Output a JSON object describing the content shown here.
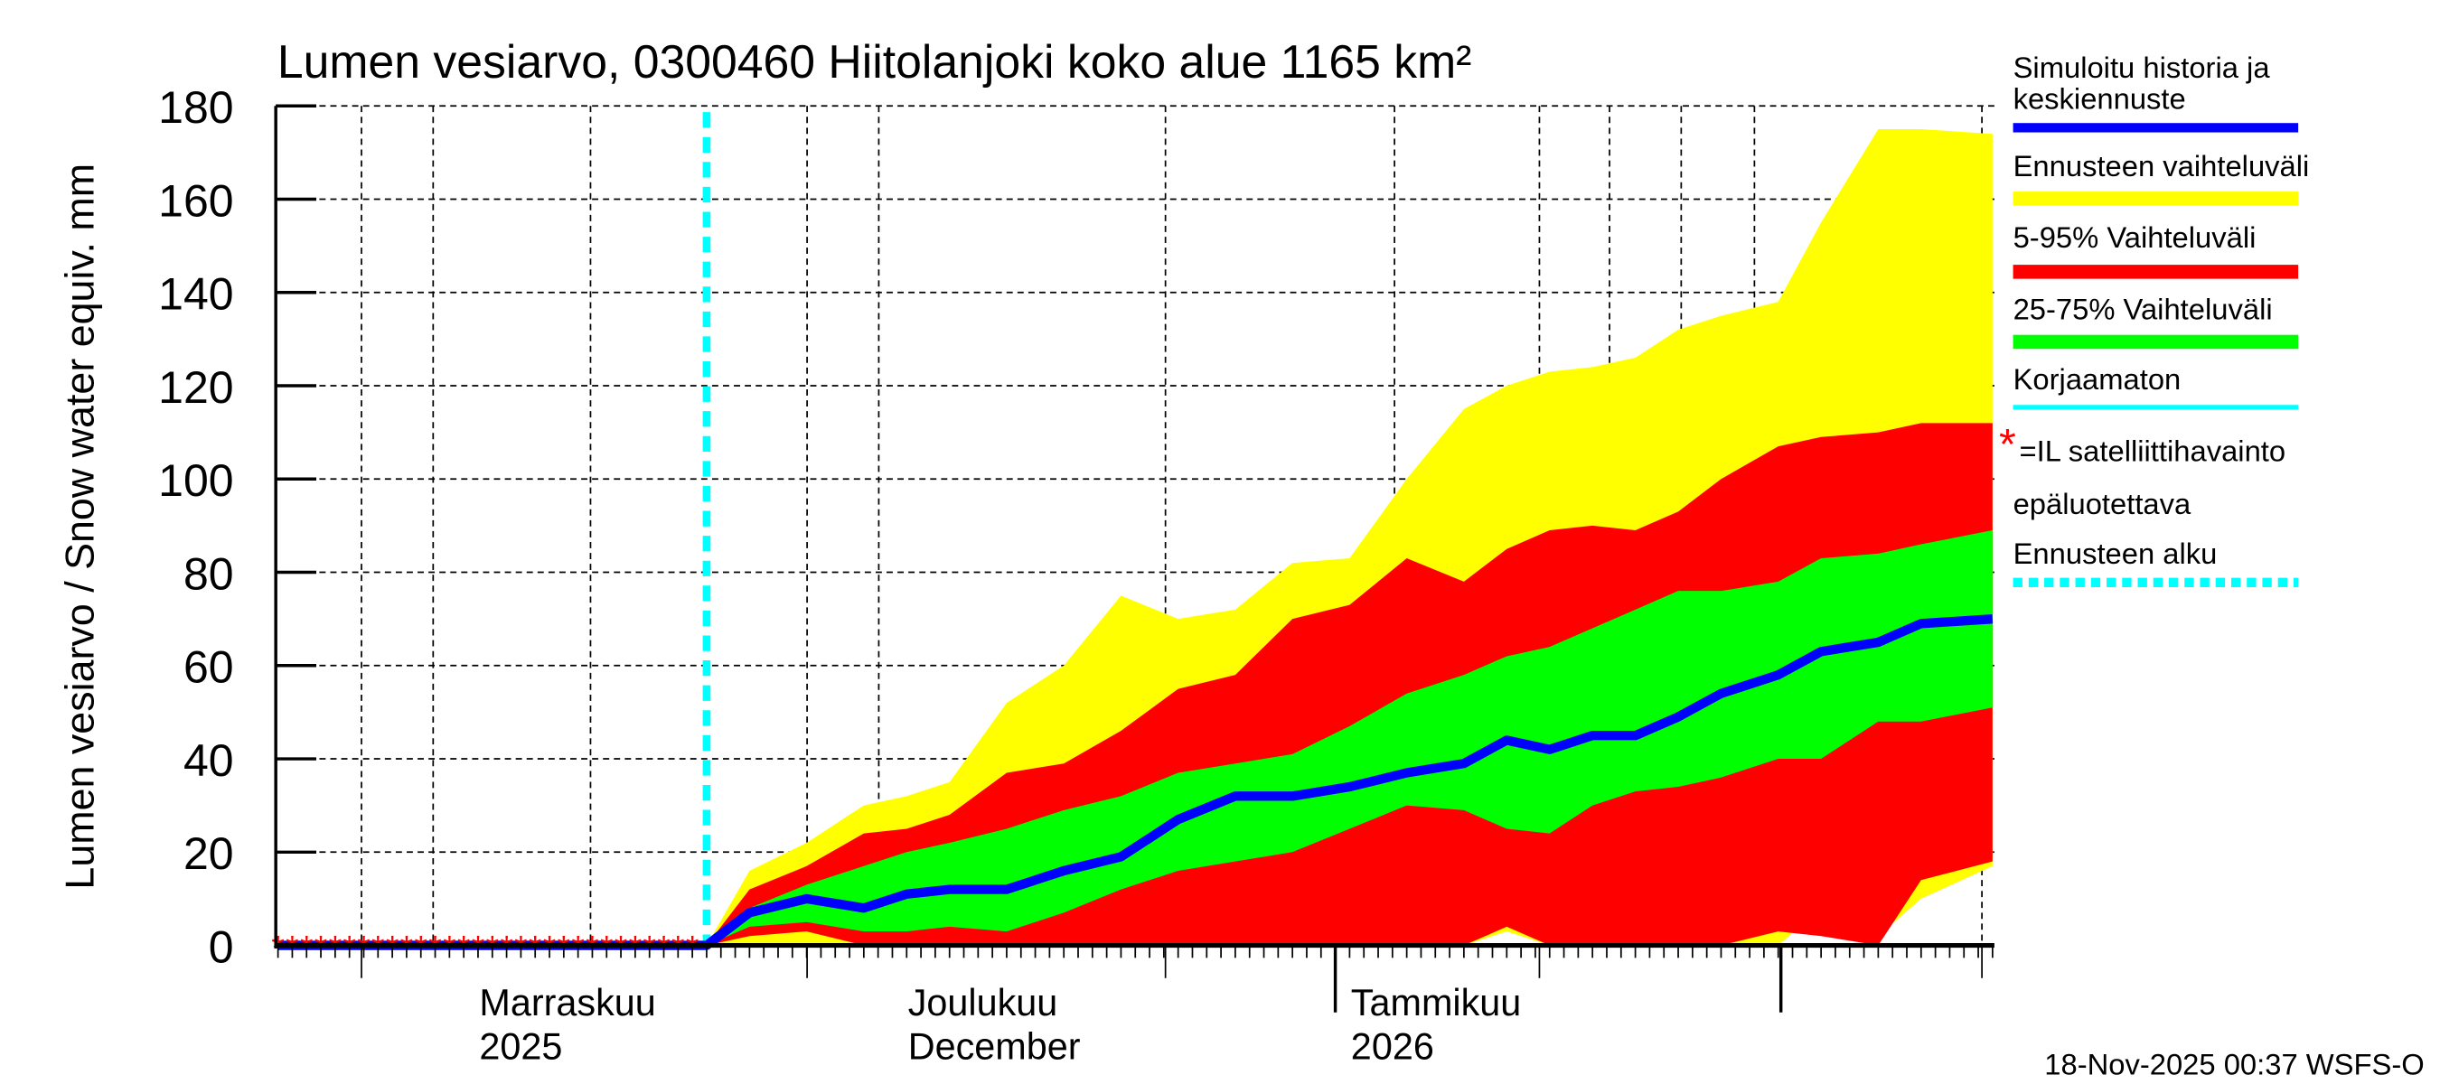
{
  "chart_data": {
    "type": "area",
    "title": "Lumen vesiarvo, 0300460 Hiitolanjoki koko alue 1165 km²",
    "ylabel": "Lumen vesiarvo / Snow water equiv.    mm",
    "ylim": [
      0,
      180
    ],
    "yticks": [
      "0",
      "20",
      "40",
      "60",
      "80",
      "100",
      "120",
      "140",
      "160",
      "180"
    ],
    "xlim": [
      "2025-10-19",
      "2026-02-16"
    ],
    "grid": true,
    "legend_placement": "right",
    "xtick_labels": [
      {
        "date": "2025-11-01",
        "line1": "Marraskuu",
        "line2": "2025"
      },
      {
        "date": "2025-12-01",
        "line1": "Joulukuu",
        "line2": "December"
      },
      {
        "date": "2026-01-01",
        "line1": "Tammikuu",
        "line2": "2026"
      }
    ],
    "forecast_start": "2025-11-18",
    "dates": [
      "2025-11-18",
      "2025-11-21",
      "2025-11-25",
      "2025-11-29",
      "2025-12-02",
      "2025-12-05",
      "2025-12-09",
      "2025-12-13",
      "2025-12-17",
      "2025-12-21",
      "2025-12-25",
      "2025-12-29",
      "2026-01-02",
      "2026-01-06",
      "2026-01-10",
      "2026-01-13",
      "2026-01-16",
      "2026-01-19",
      "2026-01-22",
      "2026-01-25",
      "2026-01-28",
      "2026-02-01",
      "2026-02-04",
      "2026-02-08",
      "2026-02-11",
      "2026-02-16"
    ],
    "series": [
      {
        "name": "Ennusteen vaihteluväli",
        "color": "#ffff00",
        "low": [
          0,
          0,
          0,
          0,
          0,
          0,
          0,
          0,
          0,
          0,
          0,
          0,
          0,
          0,
          0,
          3,
          0,
          0,
          0,
          0,
          0,
          0,
          8,
          2,
          10,
          17
        ],
        "high": [
          0,
          16,
          22,
          30,
          32,
          35,
          52,
          60,
          75,
          70,
          72,
          82,
          83,
          100,
          115,
          120,
          123,
          124,
          126,
          132,
          135,
          138,
          155,
          175,
          175,
          174
        ]
      },
      {
        "name": "5-95% Vaihteluväli",
        "color": "#ff0000",
        "low": [
          0,
          2,
          3,
          0,
          0,
          0,
          0,
          0,
          0,
          0,
          0,
          0,
          0,
          0,
          0,
          4,
          0,
          0,
          0,
          0,
          0,
          3,
          2,
          0,
          14,
          18
        ],
        "high": [
          0,
          12,
          17,
          24,
          25,
          28,
          37,
          39,
          46,
          55,
          58,
          70,
          73,
          83,
          78,
          85,
          89,
          90,
          89,
          93,
          100,
          107,
          109,
          110,
          112,
          112
        ]
      },
      {
        "name": "25-75% Vaihteluväli",
        "color": "#00ff00",
        "low": [
          0,
          4,
          5,
          3,
          3,
          4,
          3,
          7,
          12,
          16,
          18,
          20,
          25,
          30,
          29,
          25,
          24,
          30,
          33,
          34,
          36,
          40,
          40,
          48,
          48,
          51
        ],
        "high": [
          0,
          8,
          13,
          17,
          20,
          22,
          25,
          29,
          32,
          37,
          39,
          41,
          47,
          54,
          58,
          62,
          64,
          68,
          72,
          76,
          76,
          78,
          83,
          84,
          86,
          89
        ]
      },
      {
        "name": "Simuloitu historia ja keskiennuste",
        "color": "#0000ff",
        "values": [
          0,
          7,
          10,
          8,
          11,
          12,
          12,
          16,
          19,
          27,
          32,
          32,
          34,
          37,
          39,
          44,
          42,
          45,
          45,
          49,
          54,
          58,
          63,
          65,
          69,
          70
        ]
      }
    ],
    "history": {
      "start": "2025-10-19",
      "end": "2025-11-18",
      "value": 0
    },
    "satellite_observations": {
      "color": "#ff0000",
      "dates": [
        "2025-10-19",
        "2025-10-20",
        "2025-10-21",
        "2025-10-22",
        "2025-10-23",
        "2025-10-24",
        "2025-10-25",
        "2025-10-26",
        "2025-10-27",
        "2025-10-28",
        "2025-10-29",
        "2025-10-30",
        "2025-10-31",
        "2025-11-01",
        "2025-11-02",
        "2025-11-03",
        "2025-11-04",
        "2025-11-05",
        "2025-11-06",
        "2025-11-07",
        "2025-11-08",
        "2025-11-09",
        "2025-11-10",
        "2025-11-11",
        "2025-11-12",
        "2025-11-13",
        "2025-11-14",
        "2025-11-15",
        "2025-11-16",
        "2025-11-17"
      ],
      "value": 0
    },
    "legend": [
      {
        "label": "Simuloitu historia ja keskiennuste",
        "color": "#0000ff",
        "style": "line"
      },
      {
        "label": "Ennusteen vaihteluväli",
        "color": "#ffff00",
        "style": "band"
      },
      {
        "label": "5-95% Vaihteluväli",
        "color": "#ff0000",
        "style": "band"
      },
      {
        "label": "25-75% Vaihteluväli",
        "color": "#00ff00",
        "style": "band"
      },
      {
        "label": "Korjaamaton",
        "color": "#00ffff",
        "style": "thin-line"
      },
      {
        "label": "=IL satelliittihavainto",
        "label2": "epäluotettava",
        "color": "#ff0000",
        "style": "star"
      },
      {
        "label": "Ennusteen alku",
        "color": "#00ffff",
        "style": "dotted"
      }
    ],
    "timestamp": "18-Nov-2025 00:37 WSFS-O"
  }
}
